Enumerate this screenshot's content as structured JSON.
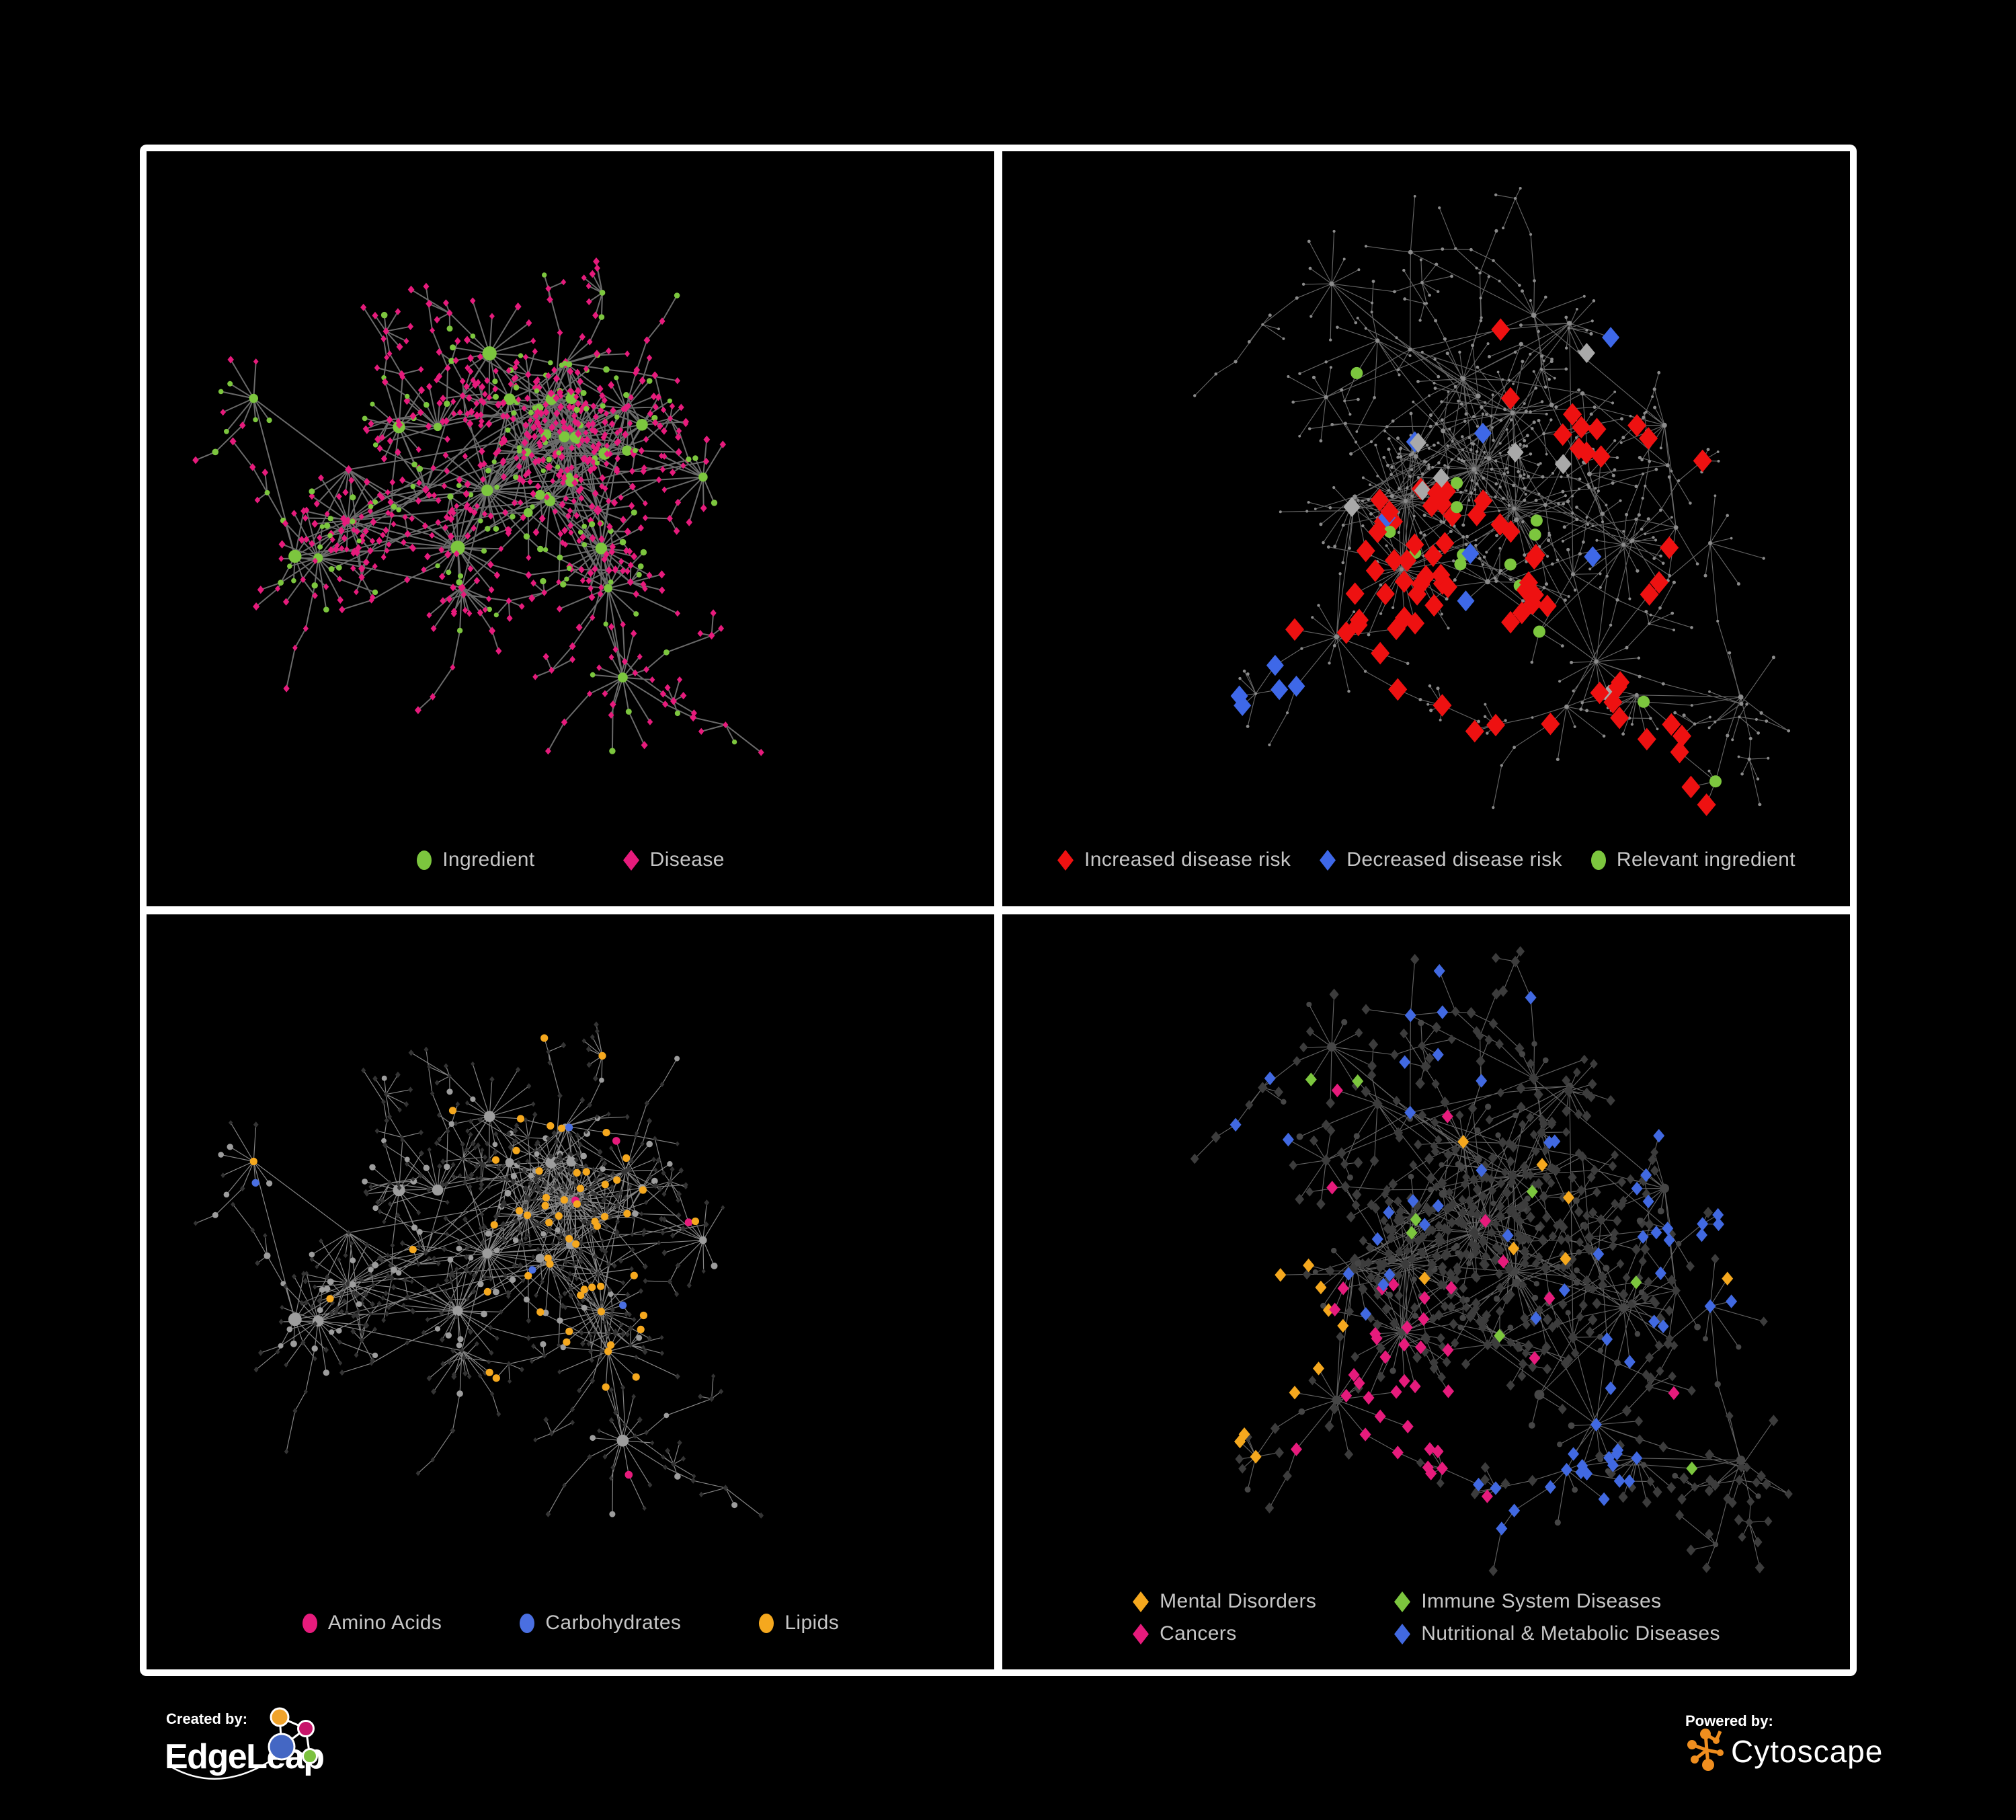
{
  "page": {
    "background": "#000000",
    "frame_color": "#FFFFFF",
    "legend_text_color": "#C6C6C6"
  },
  "palette": {
    "green": "#7CC63E",
    "magenta": "#E61B7C",
    "red": "#EE1111",
    "blue": "#4169E1",
    "light_blue": "#3E68E8",
    "orange": "#F5A81E",
    "light_gray": "#9D9D9D",
    "mid_gray": "#8B8B8B",
    "gray_diamond": "#A9A9A9",
    "dark_diamond": "#3C3C3C",
    "edge_gray": "#707070"
  },
  "network_params": {
    "A": {
      "hubs": 34,
      "coreHubs": 12,
      "hubDist": [
        95,
        235
      ],
      "leafMin": 3,
      "leafMax": 17,
      "leafPow": 1.5,
      "leafR": [
        30,
        74
      ],
      "chainProb": 0.17,
      "chainLen": 3,
      "fanProb": 0.25,
      "crossLinks": 30,
      "ingProb": {
        "hub": 0.55,
        "leaf": 0.24,
        "chain": 0.12,
        "mid": 0.3
      },
      "seed": 1337
    },
    "B": {
      "hubs": 42,
      "coreHubs": 7,
      "hubDist": [
        115,
        290
      ],
      "leafMin": 2,
      "leafMax": 16,
      "leafPow": 1.35,
      "leafR": [
        30,
        85
      ],
      "chainProb": 0.3,
      "chainLen": 4,
      "fanProb": 0.2,
      "crossLinks": 20,
      "ingProb": {
        "hub": 0.4,
        "leaf": 0.16,
        "chain": 0.08,
        "mid": 0.2
      },
      "seed": 4242
    }
  },
  "panels": [
    {
      "id": "ingredient-disease",
      "position": "top-left",
      "layout": "A",
      "style_seed": 11,
      "style": {
        "edge": {
          "color": "#707070",
          "width": 2.0,
          "opacity": 0.95
        },
        "ing": {
          "shape": "circle",
          "color": "#7CC63E",
          "rHub": [
            6,
            12
          ],
          "rLeaf": [
            3.6,
            4.8
          ]
        },
        "dis": {
          "shape": "diamond",
          "color": "#E61B7C",
          "sHub": [
            5,
            7
          ],
          "sLeaf": [
            3.9,
            5.1
          ]
        },
        "rules": []
      },
      "legend": {
        "gap": 130,
        "items": [
          {
            "label": "Ingredient",
            "shape": "circle",
            "color": "#7CC63E"
          },
          {
            "label": "Disease",
            "shape": "diamond",
            "color": "#E61B7C"
          }
        ]
      }
    },
    {
      "id": "disease-risk",
      "position": "top-right",
      "layout": "B",
      "style_seed": 22,
      "style": {
        "edge": {
          "color": "#6F6F6F",
          "width": 1.15,
          "opacity": 0.9
        },
        "ing": {
          "shape": "circle",
          "color": "#8B8B8B",
          "rHub": [
            3.0,
            4.2
          ],
          "rLeaf": [
            1.9,
            2.6
          ]
        },
        "dis": {
          "shape": "circle",
          "color": "#8B8B8B",
          "rHub": [
            3.0,
            4.2
          ],
          "rLeaf": [
            1.9,
            2.6
          ]
        },
        "rules": [
          {
            "type": "dis",
            "shape": "diamond",
            "color": "#EE1111",
            "base": 0.012,
            "size": 14,
            "anchors": [
              [
                620,
                690,
                200,
                0.5
              ],
              [
                380,
                640,
                150,
                0.33
              ],
              [
                880,
                820,
                160,
                0.33
              ],
              [
                1060,
                1020,
                110,
                0.35
              ],
              [
                940,
                420,
                120,
                0.25
              ]
            ]
          },
          {
            "type": "dis",
            "shape": "diamond",
            "color": "#3E68E8",
            "base": 0.004,
            "size": 13,
            "anchors": [
              [
                350,
                700,
                140,
                0.5
              ],
              [
                1235,
                530,
                70,
                0.95
              ]
            ]
          },
          {
            "type": "dis",
            "shape": "diamond",
            "color": "#A9A9A9",
            "base": 0.013,
            "size": 12.5,
            "anchors": []
          },
          {
            "type": "ing",
            "shape": "circle",
            "color": "#7CC63E",
            "base": 0.03,
            "size": 9,
            "anchors": [
              [
                620,
                700,
                250,
                0.5
              ],
              [
                350,
                620,
                170,
                0.45
              ],
              [
                1060,
                1030,
                120,
                0.5
              ],
              [
                870,
                830,
                130,
                0.4
              ],
              [
                180,
                700,
                100,
                0.4
              ]
            ]
          }
        ]
      },
      "legend": {
        "gap": 42,
        "items": [
          {
            "label": "Increased disease risk",
            "shape": "diamond",
            "color": "#EE1111"
          },
          {
            "label": "Decreased disease risk",
            "shape": "diamond",
            "color": "#3E68E8"
          },
          {
            "label": "Relevant ingredient",
            "shape": "circle",
            "color": "#7CC63E"
          }
        ]
      }
    },
    {
      "id": "ingredient-categories",
      "position": "bottom-left",
      "layout": "A",
      "style_seed": 33,
      "style": {
        "edge": {
          "color": "#9B9B9B",
          "width": 1.2,
          "opacity": 0.85
        },
        "ing": {
          "shape": "circle",
          "color": "#9D9D9D",
          "rHub": [
            5.5,
            10
          ],
          "rLeaf": [
            3.9,
            5.0
          ]
        },
        "dis": {
          "shape": "diamond",
          "color": "#343434",
          "sHub": [
            3.4,
            4.2
          ],
          "sLeaf": [
            3.0,
            4.0
          ]
        },
        "rules": [
          {
            "type": "ing",
            "shape": "circle",
            "color": "#F5A81E",
            "base": 0.06,
            "size": 5.6,
            "anchors": [
              [
                700,
                470,
                150,
                0.95
              ],
              [
                620,
                650,
                120,
                0.65
              ],
              [
                560,
                300,
                170,
                0.45
              ],
              [
                980,
                620,
                120,
                0.4
              ]
            ]
          },
          {
            "type": "ing",
            "shape": "circle",
            "color": "#4A6FE1",
            "base": 0.025,
            "size": 5.6,
            "anchors": [
              [
                710,
                500,
                95,
                0.5
              ]
            ]
          },
          {
            "type": "ing",
            "shape": "circle",
            "color": "#E61B7C",
            "base": 0.05,
            "size": 5.8,
            "anchors": [
              [
                950,
                880,
                160,
                0.35
              ],
              [
                380,
                990,
                170,
                0.3
              ]
            ]
          }
        ]
      },
      "legend": {
        "gap": 115,
        "items": [
          {
            "label": "Amino Acids",
            "shape": "circle",
            "color": "#E61B7C"
          },
          {
            "label": "Carbohydrates",
            "shape": "circle",
            "color": "#4A6FE1"
          },
          {
            "label": "Lipids",
            "shape": "circle",
            "color": "#F5A81E"
          }
        ]
      }
    },
    {
      "id": "disease-categories",
      "position": "bottom-right",
      "layout": "B",
      "style_seed": 44,
      "style": {
        "edge": {
          "color": "#6C6C6C",
          "width": 1.15,
          "opacity": 0.9
        },
        "ing": {
          "shape": "circle",
          "color": "#464646",
          "rHub": [
            5.5,
            7.5
          ],
          "rLeaf": [
            4.0,
            5.0
          ]
        },
        "dis": {
          "shape": "diamond",
          "color": "#3C3C3C",
          "sHub": [
            6.5,
            8
          ],
          "sLeaf": [
            5.8,
            7.2
          ]
        },
        "rules": [
          {
            "type": "dis",
            "shape": "diamond",
            "color": "#F5A81E",
            "base": 0.015,
            "size": 8.5,
            "anchors": [
              [
                335,
                650,
                175,
                0.97
              ],
              [
                430,
                560,
                100,
                0.7
              ]
            ]
          },
          {
            "type": "dis",
            "shape": "diamond",
            "color": "#E61B7C",
            "base": 0.02,
            "size": 8.5,
            "anchors": [
              [
                610,
                790,
                160,
                0.75
              ],
              [
                560,
                640,
                110,
                0.45
              ],
              [
                1245,
                390,
                95,
                0.65
              ]
            ]
          },
          {
            "type": "dis",
            "shape": "diamond",
            "color": "#4169E1",
            "base": 0.05,
            "size": 8.5,
            "anchors": [
              [
                845,
                850,
                140,
                0.8
              ],
              [
                1100,
                420,
                170,
                0.5
              ],
              [
                950,
                690,
                95,
                0.5
              ],
              [
                700,
                120,
                100,
                0.5
              ],
              [
                205,
                205,
                130,
                0.4
              ],
              [
                330,
                320,
                110,
                0.35
              ]
            ]
          },
          {
            "type": "dis",
            "shape": "diamond",
            "color": "#7CC63E",
            "base": 0.013,
            "size": 8.5,
            "anchors": []
          }
        ]
      },
      "legend": {
        "columns": 2,
        "gap": 115,
        "items": [
          {
            "label": "Mental Disorders",
            "shape": "diamond",
            "color": "#F5A81E"
          },
          {
            "label": "Immune System Diseases",
            "shape": "diamond",
            "color": "#7CC63E"
          },
          {
            "label": "Cancers",
            "shape": "diamond",
            "color": "#E61B7C"
          },
          {
            "label": "Nutritional & Metabolic Diseases",
            "shape": "diamond",
            "color": "#4169E1"
          }
        ]
      }
    }
  ],
  "footer": {
    "created_by": {
      "label": "Created by:",
      "brand": "EdgeLeap"
    },
    "powered_by": {
      "label": "Powered by:",
      "brand": "Cytoscape"
    },
    "edgeleap_logo_colors": {
      "orange": "#F0A32B",
      "magenta": "#C7156A",
      "blue": "#4467C4",
      "green": "#7CC23F"
    },
    "cytoscape_logo_color": "#EF8E1F"
  }
}
